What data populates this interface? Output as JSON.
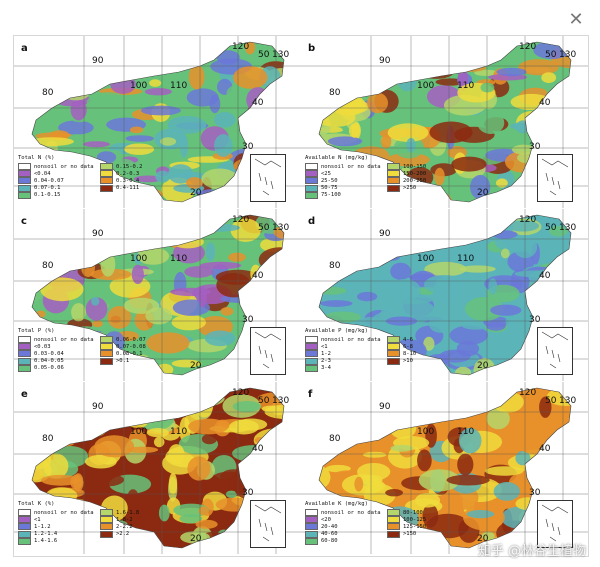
{
  "close_icon": "close-icon",
  "watermark": "知乎 @林谷生植物",
  "panels": [
    {
      "id": "a",
      "letter": "a",
      "title": "Total N (%)",
      "theme": "spectral",
      "lat": [
        "40",
        "30",
        "20"
      ],
      "lon": [
        "90",
        "100",
        "110",
        "120",
        "130"
      ],
      "extra_lat": "50",
      "extra_lon": "80",
      "legend": [
        {
          "label": "nonsoil or no data",
          "color": "#ffffff"
        },
        {
          "label": "0.15-0.2",
          "color": "#b5d66a"
        },
        {
          "label": "<0.04",
          "color": "#a45fc2"
        },
        {
          "label": "0.2-0.3",
          "color": "#f0dc3c"
        },
        {
          "label": "0.04-0.07",
          "color": "#6b78d8"
        },
        {
          "label": "0.3-0.4",
          "color": "#e8902a"
        },
        {
          "label": "0.07-0.1",
          "color": "#5ab4b8"
        },
        {
          "label": "0.4-111",
          "color": "#8b2a10"
        },
        {
          "label": "0.1-0.15",
          "color": "#66c27a"
        }
      ]
    },
    {
      "id": "b",
      "letter": "b",
      "title": "Available N (mg/kg)",
      "theme": "spectral",
      "lat": [
        "40",
        "30",
        "20"
      ],
      "lon": [
        "90",
        "100",
        "110",
        "120",
        "130"
      ],
      "extra_lat": "50",
      "extra_lon": "80",
      "legend": [
        {
          "label": "nonsoil or no data",
          "color": "#ffffff"
        },
        {
          "label": "100-150",
          "color": "#b5d66a"
        },
        {
          "label": "<25",
          "color": "#a45fc2"
        },
        {
          "label": "150-200",
          "color": "#f0dc3c"
        },
        {
          "label": "25-50",
          "color": "#6b78d8"
        },
        {
          "label": "200-250",
          "color": "#e8902a"
        },
        {
          "label": "50-75",
          "color": "#5ab4b8"
        },
        {
          "label": ">250",
          "color": "#8b2a10"
        },
        {
          "label": "75-100",
          "color": "#66c27a"
        }
      ]
    },
    {
      "id": "c",
      "letter": "c",
      "title": "Total P (%)",
      "theme": "spectral",
      "lat": [
        "40",
        "30",
        "20"
      ],
      "lon": [
        "90",
        "100",
        "110",
        "120",
        "130"
      ],
      "extra_lat": "50",
      "extra_lon": "80",
      "legend": [
        {
          "label": "nonsoil or no data",
          "color": "#ffffff"
        },
        {
          "label": "0.06-0.07",
          "color": "#b5d66a"
        },
        {
          "label": "<0.03",
          "color": "#a45fc2"
        },
        {
          "label": "0.07-0.08",
          "color": "#f0dc3c"
        },
        {
          "label": "0.03-0.04",
          "color": "#6b78d8"
        },
        {
          "label": "0.08-0.1",
          "color": "#e8902a"
        },
        {
          "label": "0.04-0.05",
          "color": "#5ab4b8"
        },
        {
          "label": ">0.1",
          "color": "#8b2a10"
        },
        {
          "label": "0.05-0.06",
          "color": "#66c27a"
        }
      ]
    },
    {
      "id": "d",
      "letter": "d",
      "title": "Available P (mg/kg)",
      "theme": "blue",
      "lat": [
        "40",
        "30",
        "20"
      ],
      "lon": [
        "90",
        "100",
        "110",
        "120",
        "130"
      ],
      "extra_lat": "50",
      "extra_lon": "80",
      "legend": [
        {
          "label": "nonsoil or no data",
          "color": "#ffffff"
        },
        {
          "label": "4-6",
          "color": "#b5d66a"
        },
        {
          "label": "<1",
          "color": "#a45fc2"
        },
        {
          "label": "6-8",
          "color": "#f0dc3c"
        },
        {
          "label": "1-2",
          "color": "#6b78d8"
        },
        {
          "label": "8-10",
          "color": "#e8902a"
        },
        {
          "label": "2-3",
          "color": "#5ab4b8"
        },
        {
          "label": ">10",
          "color": "#8b2a10"
        },
        {
          "label": "3-4",
          "color": "#66c27a"
        }
      ]
    },
    {
      "id": "e",
      "letter": "e",
      "title": "Total K (%)",
      "theme": "warm",
      "lat": [
        "40",
        "30",
        "20"
      ],
      "lon": [
        "90",
        "100",
        "110",
        "120",
        "130"
      ],
      "extra_lat": "50",
      "extra_lon": "80",
      "legend": [
        {
          "label": "nonsoil or no data",
          "color": "#ffffff"
        },
        {
          "label": "1.6-1.8",
          "color": "#b5d66a"
        },
        {
          "label": "<1",
          "color": "#a45fc2"
        },
        {
          "label": "1.8-2",
          "color": "#f0dc3c"
        },
        {
          "label": "1-1.2",
          "color": "#6b78d8"
        },
        {
          "label": "2-2.2",
          "color": "#e8902a"
        },
        {
          "label": "1.2-1.4",
          "color": "#5ab4b8"
        },
        {
          "label": ">2.2",
          "color": "#8b2a10"
        },
        {
          "label": "1.4-1.6",
          "color": "#66c27a"
        }
      ]
    },
    {
      "id": "f",
      "letter": "f",
      "title": "Available K (mg/kg)",
      "theme": "hot",
      "lat": [
        "40",
        "30",
        "20"
      ],
      "lon": [
        "90",
        "100",
        "110",
        "120",
        "130"
      ],
      "extra_lat": "50",
      "extra_lon": "80",
      "legend": [
        {
          "label": "nonsoil or no data",
          "color": "#ffffff"
        },
        {
          "label": "80-100",
          "color": "#b5d66a"
        },
        {
          "label": "<20",
          "color": "#a45fc2"
        },
        {
          "label": "100-125",
          "color": "#f0dc3c"
        },
        {
          "label": "20-40",
          "color": "#6b78d8"
        },
        {
          "label": "125-150",
          "color": "#e8902a"
        },
        {
          "label": "40-60",
          "color": "#5ab4b8"
        },
        {
          "label": ">150",
          "color": "#8b2a10"
        },
        {
          "label": "60-80",
          "color": "#66c27a"
        }
      ]
    }
  ]
}
